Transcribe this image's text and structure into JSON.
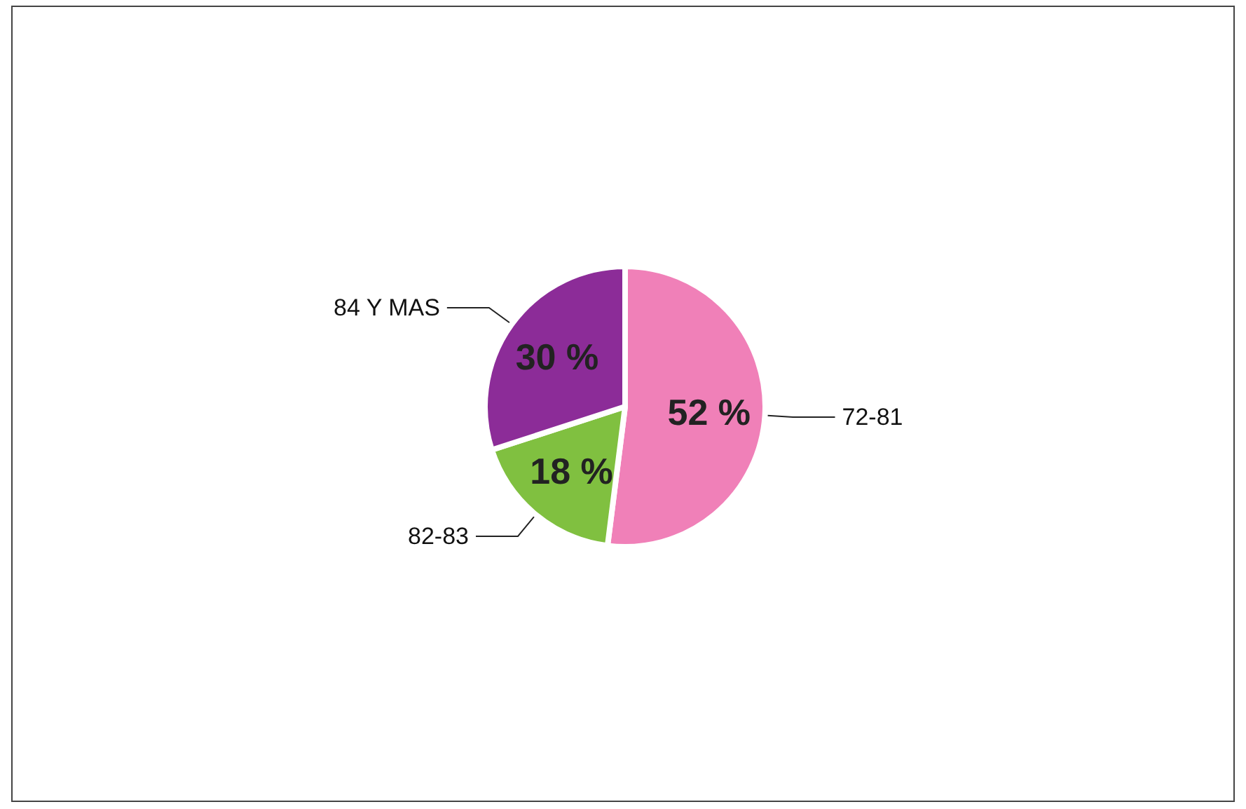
{
  "chart_data": {
    "type": "pie",
    "categories": [
      "72-81",
      "82-83",
      "84 Y MAS"
    ],
    "values": [
      52,
      18,
      30
    ],
    "value_labels": [
      "52 %",
      "18 %",
      "30 %"
    ],
    "colors": [
      "#f080b8",
      "#80c040",
      "#8c2c98"
    ]
  }
}
